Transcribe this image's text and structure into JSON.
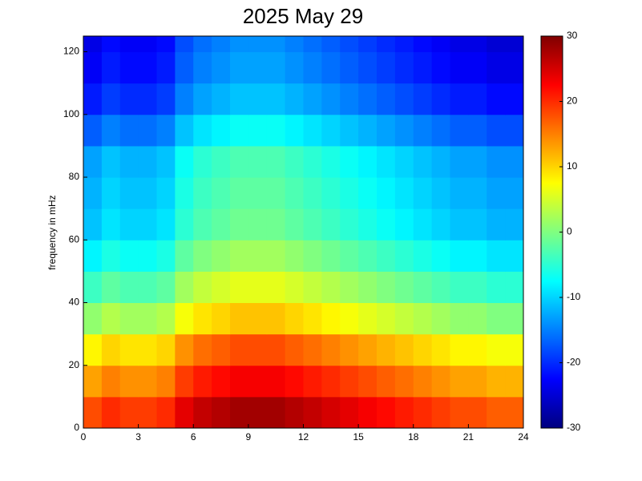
{
  "chart_data": {
    "type": "heatmap",
    "title": "2025 May 29",
    "ylabel": "frequency in mHz",
    "xbins": [
      0,
      1,
      2,
      3,
      4,
      5,
      6,
      7,
      8,
      9,
      10,
      11,
      12,
      13,
      14,
      15,
      16,
      17,
      18,
      19,
      20,
      21,
      22,
      23,
      24
    ],
    "ybins": [
      0,
      10,
      20,
      30,
      40,
      50,
      60,
      70,
      80,
      90,
      100,
      110,
      120,
      125
    ],
    "values": [
      [
        18,
        20,
        19,
        19,
        20,
        24,
        26,
        27,
        28,
        28,
        28,
        27,
        26,
        25,
        24,
        23,
        22,
        21,
        20,
        19,
        18,
        18,
        17,
        17
      ],
      [
        13,
        15,
        14,
        14,
        15,
        19,
        21,
        22,
        23,
        23,
        23,
        22,
        21,
        20,
        19,
        18,
        17,
        16,
        15,
        14,
        13,
        13,
        12,
        12
      ],
      [
        8,
        10,
        9,
        9,
        10,
        14,
        16,
        17,
        18,
        18,
        18,
        17,
        16,
        15,
        14,
        13,
        12,
        11,
        10,
        9,
        8,
        8,
        7,
        7
      ],
      [
        1,
        3,
        2,
        2,
        3,
        7,
        9,
        10,
        11,
        11,
        11,
        10,
        9,
        8,
        7,
        6,
        5,
        4,
        3,
        2,
        1,
        1,
        0,
        0
      ],
      [
        -4,
        -2,
        -3,
        -3,
        -2,
        2,
        4,
        5,
        6,
        6,
        6,
        5,
        4,
        3,
        2,
        1,
        0,
        -1,
        -2,
        -3,
        -4,
        -4,
        -5,
        -5
      ],
      [
        -8,
        -6,
        -7,
        -7,
        -6,
        -2,
        0,
        1,
        2,
        2,
        2,
        1,
        0,
        -1,
        -2,
        -3,
        -4,
        -5,
        -6,
        -7,
        -8,
        -8,
        -9,
        -9
      ],
      [
        -11,
        -9,
        -10,
        -10,
        -9,
        -5,
        -3,
        -2,
        -1,
        -1,
        -1,
        -2,
        -3,
        -4,
        -5,
        -6,
        -7,
        -8,
        -9,
        -10,
        -11,
        -11,
        -12,
        -12
      ],
      [
        -12,
        -10,
        -11,
        -11,
        -10,
        -6,
        -4,
        -3,
        -2,
        -2,
        -2,
        -3,
        -4,
        -5,
        -6,
        -7,
        -8,
        -9,
        -10,
        -11,
        -12,
        -12,
        -13,
        -13
      ],
      [
        -13,
        -11,
        -12,
        -12,
        -11,
        -7,
        -5,
        -4,
        -3,
        -3,
        -3,
        -4,
        -5,
        -6,
        -7,
        -8,
        -9,
        -10,
        -11,
        -12,
        -13,
        -13,
        -14,
        -14
      ],
      [
        -17,
        -15,
        -16,
        -16,
        -15,
        -11,
        -9,
        -8,
        -7,
        -7,
        -7,
        -8,
        -9,
        -10,
        -11,
        -12,
        -13,
        -14,
        -15,
        -16,
        -17,
        -17,
        -18,
        -18
      ],
      [
        -21,
        -19,
        -20,
        -20,
        -19,
        -15,
        -13,
        -12,
        -11,
        -11,
        -11,
        -12,
        -13,
        -14,
        -15,
        -16,
        -17,
        -18,
        -19,
        -20,
        -21,
        -21,
        -22,
        -22
      ],
      [
        -23,
        -21,
        -22,
        -22,
        -21,
        -17,
        -15,
        -14,
        -13,
        -13,
        -13,
        -14,
        -15,
        -16,
        -17,
        -18,
        -19,
        -20,
        -21,
        -22,
        -23,
        -23,
        -24,
        -24
      ],
      [
        -24,
        -22,
        -23,
        -23,
        -22,
        -18,
        -16,
        -15,
        -14,
        -14,
        -14,
        -15,
        -16,
        -17,
        -18,
        -19,
        -20,
        -21,
        -22,
        -23,
        -24,
        -24,
        -25,
        -25
      ]
    ],
    "xlim": [
      0,
      24
    ],
    "xticks": [
      0,
      3,
      6,
      9,
      12,
      15,
      18,
      21,
      24
    ],
    "ylim": [
      0,
      125
    ],
    "yticks": [
      0,
      20,
      40,
      60,
      80,
      100,
      120
    ],
    "colormap": "jet",
    "clim": [
      -30,
      30
    ],
    "cticks": [
      -30,
      -20,
      -10,
      0,
      10,
      20,
      30
    ]
  }
}
